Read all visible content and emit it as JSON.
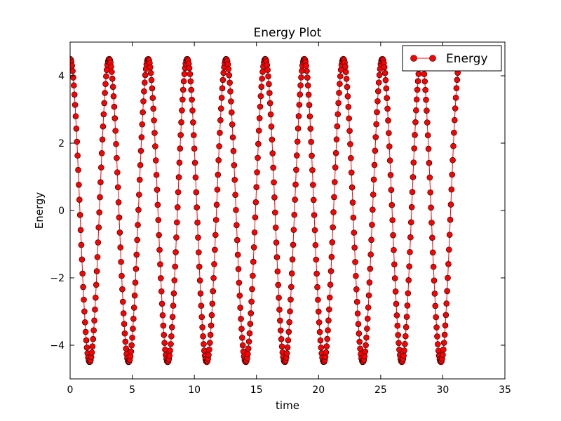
{
  "chart_data": {
    "type": "line",
    "title": "Energy Plot",
    "xlabel": "time",
    "ylabel": "Energy",
    "xlim": [
      0,
      35
    ],
    "ylim": [
      -5,
      5
    ],
    "xticks": [
      0,
      5,
      10,
      15,
      20,
      25,
      30,
      35
    ],
    "yticks": [
      -4,
      -2,
      0,
      2,
      4
    ],
    "ytick_labels": [
      "−4",
      "−2",
      "0",
      "2",
      "4"
    ],
    "grid": false,
    "legend_position": "top-right",
    "series": [
      {
        "name": "Energy",
        "color": "#ff0000",
        "marker": "circle",
        "function": "4.5*cos(2*t)",
        "x_start": 0,
        "x_end": 31.4,
        "x_step": 0.05
      }
    ]
  }
}
